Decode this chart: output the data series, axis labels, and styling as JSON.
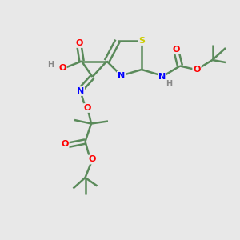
{
  "bg_color": "#e8e8e8",
  "bond_color": "#5a8a5a",
  "bond_width": 1.8,
  "atom_colors": {
    "O": "#ff0000",
    "N": "#0000ff",
    "S": "#cccc00",
    "H": "#888888",
    "C": "#5a8a5a"
  },
  "font_size_atom": 8,
  "font_size_small": 6,
  "xlim": [
    0,
    10
  ],
  "ylim": [
    0,
    10
  ]
}
